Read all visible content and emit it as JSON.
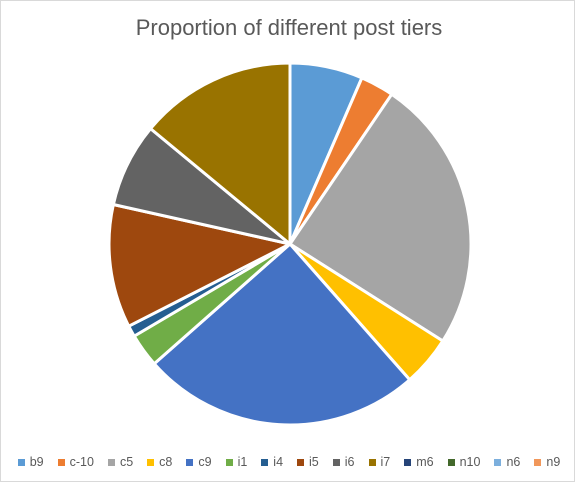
{
  "chart_data": {
    "type": "pie",
    "title": "Proportion of different post tiers",
    "legend_position": "bottom",
    "slices": [
      {
        "label": "b9",
        "value": 6.5,
        "color": "#5B9BD5"
      },
      {
        "label": "c-10",
        "value": 3.0,
        "color": "#ED7D31"
      },
      {
        "label": "c5",
        "value": 24.5,
        "color": "#A5A5A5"
      },
      {
        "label": "c8",
        "value": 4.5,
        "color": "#FFC000"
      },
      {
        "label": "c9",
        "value": 25.0,
        "color": "#4472C4"
      },
      {
        "label": "i1",
        "value": 3.0,
        "color": "#70AD47"
      },
      {
        "label": "i4",
        "value": 1.0,
        "color": "#255E91"
      },
      {
        "label": "i5",
        "value": 11.0,
        "color": "#9E480E"
      },
      {
        "label": "i6",
        "value": 7.5,
        "color": "#636363"
      },
      {
        "label": "i7",
        "value": 14.0,
        "color": "#997300"
      },
      {
        "label": "m6",
        "value": 0,
        "color": "#264478"
      },
      {
        "label": "n10",
        "value": 0,
        "color": "#43682B"
      },
      {
        "label": "n6",
        "value": 0,
        "color": "#7CAFDD"
      },
      {
        "label": "n9",
        "value": 0,
        "color": "#F1975A"
      }
    ]
  }
}
